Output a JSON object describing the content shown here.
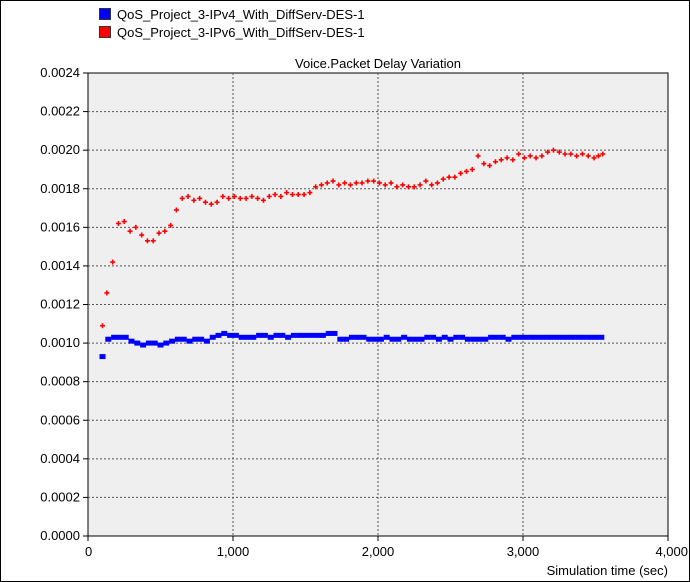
{
  "colors": {
    "series_ipv4": "#0000ff",
    "series_ipv6": "#ff0000",
    "plot_bg": "#efefef"
  },
  "legend": [
    {
      "label": "QoS_Project_3-IPv4_With_DiffServ-DES-1",
      "color": "#0000ff"
    },
    {
      "label": "QoS_Project_3-IPv6_With_DiffServ-DES-1",
      "color": "#ff0000"
    }
  ],
  "chart_data": {
    "type": "scatter",
    "title": "Voice.Packet Delay Variation",
    "xlabel": "Simulation time (sec)",
    "ylabel": "",
    "xlim": [
      0,
      4000
    ],
    "ylim": [
      0,
      0.0024
    ],
    "grid": true,
    "legend_position": "top-left",
    "x_ticks": [
      "0",
      "1,000",
      "2,000",
      "3,000",
      "4,000"
    ],
    "y_ticks": [
      "0.0000",
      "0.0002",
      "0.0004",
      "0.0006",
      "0.0008",
      "0.0010",
      "0.0012",
      "0.0014",
      "0.0016",
      "0.0018",
      "0.0020",
      "0.0022",
      "0.0024"
    ],
    "series": [
      {
        "name": "QoS_Project_3-IPv4_With_DiffServ-DES-1",
        "color": "#0000ff",
        "marker": "square",
        "points": [
          [
            100,
            0.00093
          ],
          [
            140,
            0.00102
          ],
          [
            180,
            0.00103
          ],
          [
            220,
            0.00103
          ],
          [
            260,
            0.00103
          ],
          [
            300,
            0.00101
          ],
          [
            340,
            0.001
          ],
          [
            380,
            0.00099
          ],
          [
            420,
            0.001
          ],
          [
            460,
            0.001
          ],
          [
            500,
            0.00099
          ],
          [
            540,
            0.001
          ],
          [
            580,
            0.00101
          ],
          [
            620,
            0.00102
          ],
          [
            660,
            0.00102
          ],
          [
            700,
            0.00101
          ],
          [
            740,
            0.00102
          ],
          [
            780,
            0.00102
          ],
          [
            820,
            0.00101
          ],
          [
            860,
            0.00103
          ],
          [
            900,
            0.00104
          ],
          [
            940,
            0.00105
          ],
          [
            980,
            0.00104
          ],
          [
            1020,
            0.00104
          ],
          [
            1060,
            0.00103
          ],
          [
            1100,
            0.00103
          ],
          [
            1140,
            0.00103
          ],
          [
            1180,
            0.00104
          ],
          [
            1220,
            0.00104
          ],
          [
            1260,
            0.00103
          ],
          [
            1300,
            0.00104
          ],
          [
            1340,
            0.00104
          ],
          [
            1380,
            0.00103
          ],
          [
            1420,
            0.00104
          ],
          [
            1460,
            0.00104
          ],
          [
            1500,
            0.00104
          ],
          [
            1540,
            0.00104
          ],
          [
            1580,
            0.00104
          ],
          [
            1620,
            0.00104
          ],
          [
            1660,
            0.00105
          ],
          [
            1700,
            0.00105
          ],
          [
            1740,
            0.00102
          ],
          [
            1780,
            0.00102
          ],
          [
            1820,
            0.00103
          ],
          [
            1860,
            0.00103
          ],
          [
            1900,
            0.00103
          ],
          [
            1940,
            0.00102
          ],
          [
            1980,
            0.00102
          ],
          [
            2020,
            0.00102
          ],
          [
            2060,
            0.00103
          ],
          [
            2100,
            0.00102
          ],
          [
            2140,
            0.00102
          ],
          [
            2180,
            0.00103
          ],
          [
            2220,
            0.00102
          ],
          [
            2260,
            0.00102
          ],
          [
            2300,
            0.00102
          ],
          [
            2340,
            0.00103
          ],
          [
            2380,
            0.00103
          ],
          [
            2420,
            0.00102
          ],
          [
            2460,
            0.00103
          ],
          [
            2500,
            0.00102
          ],
          [
            2540,
            0.00103
          ],
          [
            2580,
            0.00103
          ],
          [
            2620,
            0.00102
          ],
          [
            2660,
            0.00102
          ],
          [
            2700,
            0.00102
          ],
          [
            2740,
            0.00102
          ],
          [
            2780,
            0.00103
          ],
          [
            2820,
            0.00103
          ],
          [
            2860,
            0.00103
          ],
          [
            2900,
            0.00102
          ],
          [
            2940,
            0.00103
          ],
          [
            2980,
            0.00103
          ],
          [
            3020,
            0.00103
          ],
          [
            3060,
            0.00103
          ],
          [
            3100,
            0.00103
          ],
          [
            3140,
            0.00103
          ],
          [
            3180,
            0.00103
          ],
          [
            3220,
            0.00103
          ],
          [
            3260,
            0.00103
          ],
          [
            3300,
            0.00103
          ],
          [
            3340,
            0.00103
          ],
          [
            3380,
            0.00103
          ],
          [
            3420,
            0.00103
          ],
          [
            3460,
            0.00103
          ],
          [
            3500,
            0.00103
          ],
          [
            3540,
            0.00103
          ]
        ]
      },
      {
        "name": "QoS_Project_3-IPv6_With_DiffServ-DES-1",
        "color": "#ff0000",
        "marker": "cross",
        "points": [
          [
            100,
            0.00109
          ],
          [
            130,
            0.00126
          ],
          [
            170,
            0.00142
          ],
          [
            210,
            0.00162
          ],
          [
            250,
            0.00163
          ],
          [
            290,
            0.00158
          ],
          [
            330,
            0.0016
          ],
          [
            370,
            0.00156
          ],
          [
            410,
            0.00153
          ],
          [
            450,
            0.00153
          ],
          [
            490,
            0.00157
          ],
          [
            530,
            0.00158
          ],
          [
            570,
            0.00161
          ],
          [
            610,
            0.00169
          ],
          [
            650,
            0.00175
          ],
          [
            690,
            0.00176
          ],
          [
            730,
            0.00174
          ],
          [
            770,
            0.00175
          ],
          [
            810,
            0.00173
          ],
          [
            850,
            0.00172
          ],
          [
            890,
            0.00173
          ],
          [
            930,
            0.00176
          ],
          [
            970,
            0.00175
          ],
          [
            1010,
            0.00176
          ],
          [
            1050,
            0.00175
          ],
          [
            1090,
            0.00175
          ],
          [
            1130,
            0.00176
          ],
          [
            1170,
            0.00175
          ],
          [
            1210,
            0.00174
          ],
          [
            1250,
            0.00176
          ],
          [
            1290,
            0.00177
          ],
          [
            1330,
            0.00176
          ],
          [
            1370,
            0.00178
          ],
          [
            1410,
            0.00177
          ],
          [
            1450,
            0.00177
          ],
          [
            1490,
            0.00177
          ],
          [
            1530,
            0.00178
          ],
          [
            1570,
            0.00181
          ],
          [
            1610,
            0.00182
          ],
          [
            1650,
            0.00183
          ],
          [
            1690,
            0.00184
          ],
          [
            1730,
            0.00182
          ],
          [
            1770,
            0.00183
          ],
          [
            1810,
            0.00182
          ],
          [
            1850,
            0.00183
          ],
          [
            1890,
            0.00183
          ],
          [
            1930,
            0.00184
          ],
          [
            1970,
            0.00184
          ],
          [
            2010,
            0.00183
          ],
          [
            2050,
            0.00182
          ],
          [
            2090,
            0.00183
          ],
          [
            2130,
            0.00181
          ],
          [
            2170,
            0.00182
          ],
          [
            2210,
            0.00181
          ],
          [
            2250,
            0.00181
          ],
          [
            2290,
            0.00182
          ],
          [
            2330,
            0.00184
          ],
          [
            2370,
            0.00182
          ],
          [
            2410,
            0.00183
          ],
          [
            2450,
            0.00185
          ],
          [
            2490,
            0.00186
          ],
          [
            2530,
            0.00186
          ],
          [
            2570,
            0.00188
          ],
          [
            2610,
            0.00189
          ],
          [
            2650,
            0.0019
          ],
          [
            2690,
            0.00197
          ],
          [
            2730,
            0.00193
          ],
          [
            2770,
            0.00192
          ],
          [
            2810,
            0.00194
          ],
          [
            2850,
            0.00195
          ],
          [
            2890,
            0.00196
          ],
          [
            2930,
            0.00195
          ],
          [
            2970,
            0.00198
          ],
          [
            3010,
            0.00196
          ],
          [
            3050,
            0.00197
          ],
          [
            3090,
            0.00196
          ],
          [
            3130,
            0.00197
          ],
          [
            3170,
            0.00199
          ],
          [
            3210,
            0.002
          ],
          [
            3250,
            0.00199
          ],
          [
            3290,
            0.00198
          ],
          [
            3330,
            0.00198
          ],
          [
            3370,
            0.00197
          ],
          [
            3410,
            0.00198
          ],
          [
            3450,
            0.00197
          ],
          [
            3490,
            0.00196
          ],
          [
            3520,
            0.00197
          ],
          [
            3550,
            0.00198
          ]
        ]
      }
    ]
  }
}
